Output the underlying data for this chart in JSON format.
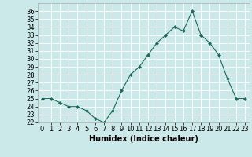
{
  "x": [
    0,
    1,
    2,
    3,
    4,
    5,
    6,
    7,
    8,
    9,
    10,
    11,
    12,
    13,
    14,
    15,
    16,
    17,
    18,
    19,
    20,
    21,
    22,
    23
  ],
  "y": [
    25,
    25,
    24.5,
    24,
    24,
    23.5,
    22.5,
    22,
    23.5,
    26,
    28,
    29,
    30.5,
    32,
    33,
    34,
    33.5,
    36,
    33,
    32,
    30.5,
    27.5,
    25,
    25
  ],
  "line_color": "#1a6b5a",
  "marker": "D",
  "marker_size": 2,
  "bg_color": "#cce9e9",
  "grid_color": "#ffffff",
  "xlabel": "Humidex (Indice chaleur)",
  "xlim": [
    -0.5,
    23.5
  ],
  "ylim": [
    22,
    37
  ],
  "yticks": [
    22,
    23,
    24,
    25,
    26,
    27,
    28,
    29,
    30,
    31,
    32,
    33,
    34,
    35,
    36
  ],
  "xticks": [
    0,
    1,
    2,
    3,
    4,
    5,
    6,
    7,
    8,
    9,
    10,
    11,
    12,
    13,
    14,
    15,
    16,
    17,
    18,
    19,
    20,
    21,
    22,
    23
  ],
  "xlabel_fontsize": 7,
  "tick_fontsize": 6
}
